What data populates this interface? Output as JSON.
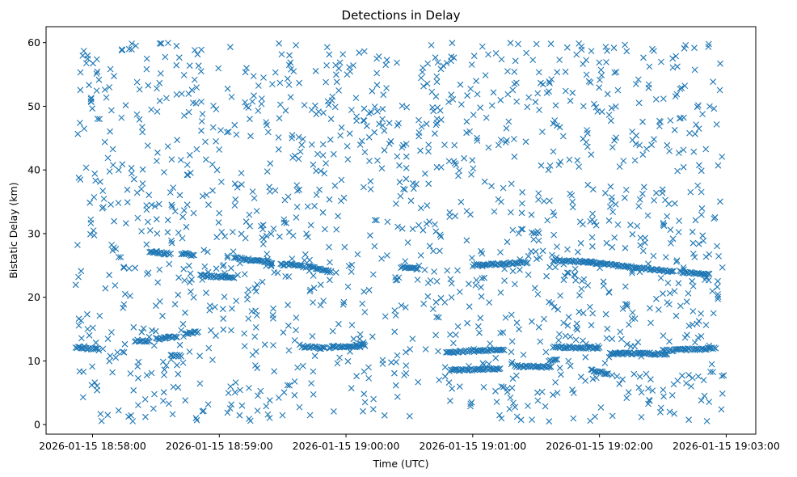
{
  "chart_data": {
    "type": "scatter",
    "title": "Detections in Delay",
    "xlabel": "Time (UTC)",
    "ylabel": "Bistatic Delay (km)",
    "x_ticks": [
      "2026-01-15 18:58:00",
      "2026-01-15 18:59:00",
      "2026-01-15 19:00:00",
      "2026-01-15 19:01:00",
      "2026-01-15 19:02:00",
      "2026-01-15 19:03:00"
    ],
    "y_ticks": [
      0,
      10,
      20,
      30,
      40,
      50,
      60
    ],
    "xlim": [
      "2026-01-15 18:57:38",
      "2026-01-15 19:03:14"
    ],
    "ylim": [
      -1.5,
      62.5
    ],
    "marker": "x",
    "color": "#1f77b4",
    "grid": false,
    "series": [
      {
        "name": "",
        "x_range": [
          "2026-01-15 18:57:52",
          "2026-01-15 19:02:59"
        ],
        "clutter": {
          "count": 1450,
          "y_range": [
            0.5,
            60
          ]
        },
        "tracks": [
          {
            "x": [
              "2026-01-15 18:57:52",
              "2026-01-15 18:58:03"
            ],
            "y": [
              12.1,
              11.8
            ]
          },
          {
            "x": [
              "2026-01-15 18:58:20",
              "2026-01-15 18:58:27"
            ],
            "y": [
              13.2,
              13.0
            ]
          },
          {
            "x": [
              "2026-01-15 18:58:27",
              "2026-01-15 18:58:37"
            ],
            "y": [
              27.2,
              26.8
            ]
          },
          {
            "x": [
              "2026-01-15 18:58:30",
              "2026-01-15 18:58:40"
            ],
            "y": [
              13.5,
              13.8
            ]
          },
          {
            "x": [
              "2026-01-15 18:58:37",
              "2026-01-15 18:58:42"
            ],
            "y": [
              10.9,
              10.8
            ]
          },
          {
            "x": [
              "2026-01-15 18:58:42",
              "2026-01-15 18:58:48"
            ],
            "y": [
              26.9,
              26.6
            ]
          },
          {
            "x": [
              "2026-01-15 18:58:44",
              "2026-01-15 18:58:50"
            ],
            "y": [
              14.3,
              14.6
            ]
          },
          {
            "x": [
              "2026-01-15 18:58:51",
              "2026-01-15 18:59:07"
            ],
            "y": [
              23.5,
              23.0
            ]
          },
          {
            "x": [
              "2026-01-15 18:59:07",
              "2026-01-15 18:59:25"
            ],
            "y": [
              26.2,
              25.5
            ]
          },
          {
            "x": [
              "2026-01-15 18:59:29",
              "2026-01-15 18:59:41"
            ],
            "y": [
              25.2,
              24.8
            ]
          },
          {
            "x": [
              "2026-01-15 18:59:39",
              "2026-01-15 18:59:50"
            ],
            "y": [
              12.3,
              12.0
            ]
          },
          {
            "x": [
              "2026-01-15 18:59:42",
              "2026-01-15 18:59:53"
            ],
            "y": [
              24.8,
              24.0
            ]
          },
          {
            "x": [
              "2026-01-15 18:59:52",
              "2026-01-15 19:00:09"
            ],
            "y": [
              12.1,
              12.5
            ]
          },
          {
            "x": [
              "2026-01-15 19:00:26",
              "2026-01-15 19:00:34"
            ],
            "y": [
              24.8,
              24.5
            ]
          },
          {
            "x": [
              "2026-01-15 19:00:48",
              "2026-01-15 19:01:15"
            ],
            "y": [
              11.4,
              11.8
            ]
          },
          {
            "x": [
              "2026-01-15 19:00:49",
              "2026-01-15 19:01:13"
            ],
            "y": [
              8.5,
              8.8
            ]
          },
          {
            "x": [
              "2026-01-15 19:01:00",
              "2026-01-15 19:01:26"
            ],
            "y": [
              25.0,
              25.5
            ]
          },
          {
            "x": [
              "2026-01-15 19:01:20",
              "2026-01-15 19:01:37"
            ],
            "y": [
              9.2,
              9.0
            ]
          },
          {
            "x": [
              "2026-01-15 19:01:36",
              "2026-01-15 19:01:40"
            ],
            "y": [
              10.0,
              10.1
            ]
          },
          {
            "x": [
              "2026-01-15 19:01:38",
              "2026-01-15 19:01:57"
            ],
            "y": [
              25.8,
              25.5
            ]
          },
          {
            "x": [
              "2026-01-15 19:01:38",
              "2026-01-15 19:02:00"
            ],
            "y": [
              12.2,
              12.0
            ]
          },
          {
            "x": [
              "2026-01-15 19:01:52",
              "2026-01-15 19:02:35"
            ],
            "y": [
              25.6,
              24.0
            ]
          },
          {
            "x": [
              "2026-01-15 19:01:56",
              "2026-01-15 19:02:04"
            ],
            "y": [
              8.5,
              8.0
            ]
          },
          {
            "x": [
              "2026-01-15 19:02:05",
              "2026-01-15 19:02:32"
            ],
            "y": [
              11.2,
              11.1
            ]
          },
          {
            "x": [
              "2026-01-15 19:02:30",
              "2026-01-15 19:02:55"
            ],
            "y": [
              11.6,
              12.0
            ]
          },
          {
            "x": [
              "2026-01-15 19:02:38",
              "2026-01-15 19:02:52"
            ],
            "y": [
              24.0,
              23.6
            ]
          }
        ]
      }
    ]
  }
}
